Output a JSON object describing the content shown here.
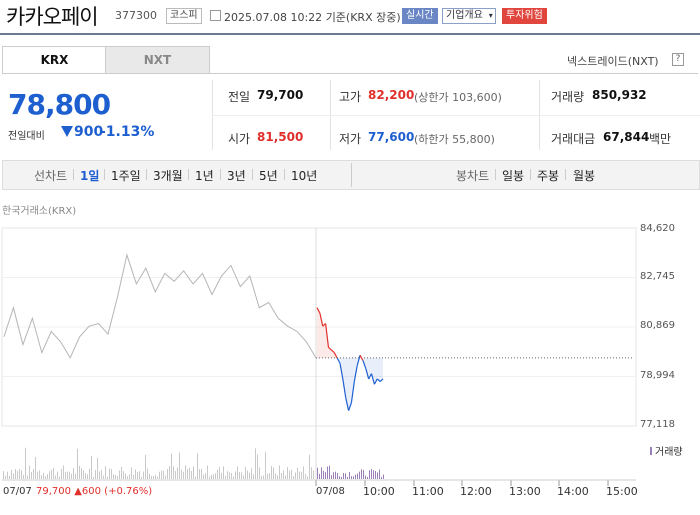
{
  "stock": {
    "name": "카카오페이",
    "code": "377300",
    "market_tag": "코스피",
    "datetime": "2025.07.08 10:22",
    "basis": "기준(KRX 장중)",
    "realtime_tag": "실시간",
    "company_info": "기업개요",
    "risk_tag": "투자위험"
  },
  "tabs": {
    "krx": "KRX",
    "nxt": "NXT",
    "nxt_link": "넥스트레이드(NXT)",
    "help_icon": "?"
  },
  "price": {
    "current": "78,800",
    "change_label": "전일대비",
    "change_amount": "900",
    "change_pct": "-1.13%"
  },
  "stats": {
    "prev_label": "전일",
    "prev_value": "79,700",
    "high_label": "고가",
    "high_value": "82,200",
    "upper_limit": "(상한가 103,600)",
    "volume_label": "거래량",
    "volume_value": "850,932",
    "open_label": "시가",
    "open_value": "81,500",
    "low_label": "저가",
    "low_value": "77,600",
    "lower_limit": "(하한가 55,800)",
    "amount_label": "거래대금",
    "amount_value": "67,844",
    "amount_unit": "백만"
  },
  "periods": {
    "line_chart": "선차트",
    "items": [
      "1일",
      "1주일",
      "3개월",
      "1년",
      "3년",
      "5년",
      "10년"
    ],
    "candle_chart": "봉차트",
    "candle_items": [
      "일봉",
      "주봉",
      "월봉"
    ]
  },
  "chart_source": "한국거래소(KRX)",
  "volume_legend": "거래량",
  "prev_day_summary": {
    "date": "07/07",
    "close": "79,700",
    "change": "600",
    "pct": "(+0.76%)"
  },
  "colors": {
    "up": "#e0302c",
    "down": "#1e5fd0",
    "prev_line": "#b5b5b5"
  },
  "chart_data": {
    "type": "line",
    "yticks": [
      "84,620",
      "82,745",
      "80,869",
      "78,994",
      "77,118"
    ],
    "xticks": [
      "07/08",
      "10:00",
      "11:00",
      "12:00",
      "13:00",
      "14:00",
      "15:00"
    ],
    "ylim": [
      77118,
      84620
    ],
    "reference_price": 79700,
    "prev_day_series": [
      {
        "t": 0,
        "v": 80500
      },
      {
        "t": 2,
        "v": 81600
      },
      {
        "t": 4,
        "v": 80200
      },
      {
        "t": 6,
        "v": 81200
      },
      {
        "t": 8,
        "v": 79900
      },
      {
        "t": 10,
        "v": 80700
      },
      {
        "t": 12,
        "v": 80300
      },
      {
        "t": 14,
        "v": 79700
      },
      {
        "t": 16,
        "v": 80500
      },
      {
        "t": 18,
        "v": 80900
      },
      {
        "t": 20,
        "v": 81000
      },
      {
        "t": 22,
        "v": 80600
      },
      {
        "t": 24,
        "v": 82000
      },
      {
        "t": 26,
        "v": 83600
      },
      {
        "t": 28,
        "v": 82500
      },
      {
        "t": 30,
        "v": 83100
      },
      {
        "t": 32,
        "v": 82200
      },
      {
        "t": 34,
        "v": 82900
      },
      {
        "t": 36,
        "v": 82600
      },
      {
        "t": 38,
        "v": 83000
      },
      {
        "t": 40,
        "v": 82500
      },
      {
        "t": 42,
        "v": 82900
      },
      {
        "t": 44,
        "v": 82100
      },
      {
        "t": 46,
        "v": 82800
      },
      {
        "t": 48,
        "v": 83200
      },
      {
        "t": 50,
        "v": 82400
      },
      {
        "t": 52,
        "v": 82800
      },
      {
        "t": 54,
        "v": 81600
      },
      {
        "t": 56,
        "v": 81800
      },
      {
        "t": 58,
        "v": 81200
      },
      {
        "t": 60,
        "v": 80900
      },
      {
        "t": 62,
        "v": 80700
      },
      {
        "t": 64,
        "v": 80300
      },
      {
        "t": 66,
        "v": 79700
      }
    ],
    "today_series": [
      {
        "t": 0,
        "v": 81600
      },
      {
        "t": 1,
        "v": 81400
      },
      {
        "t": 2,
        "v": 80900
      },
      {
        "t": 3,
        "v": 81000
      },
      {
        "t": 4,
        "v": 80100
      },
      {
        "t": 5,
        "v": 80000
      },
      {
        "t": 6,
        "v": 79900
      },
      {
        "t": 7,
        "v": 79700
      },
      {
        "t": 8,
        "v": 79500
      },
      {
        "t": 9,
        "v": 78900
      },
      {
        "t": 10,
        "v": 78200
      },
      {
        "t": 11,
        "v": 77700
      },
      {
        "t": 12,
        "v": 78000
      },
      {
        "t": 13,
        "v": 78800
      },
      {
        "t": 14,
        "v": 79400
      },
      {
        "t": 15,
        "v": 79800
      },
      {
        "t": 16,
        "v": 79600
      },
      {
        "t": 17,
        "v": 79300
      },
      {
        "t": 18,
        "v": 78900
      },
      {
        "t": 19,
        "v": 79100
      },
      {
        "t": 20,
        "v": 78700
      },
      {
        "t": 21,
        "v": 78900
      },
      {
        "t": 22,
        "v": 78800
      },
      {
        "t": 23,
        "v": 78900
      }
    ]
  }
}
